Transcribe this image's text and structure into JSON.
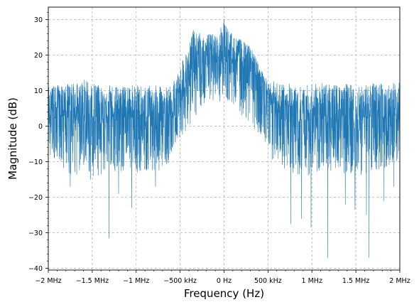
{
  "chart_data": {
    "type": "line",
    "title": "",
    "xlabel": "Frequency (Hz)",
    "ylabel": "Magnitude (dB)",
    "xlim": [
      -2000000,
      2000000
    ],
    "ylim": [
      -40.5,
      33.5
    ],
    "grid": true,
    "series_color": "#1f77b4",
    "xticks": [
      {
        "value": -2000000,
        "label": "−2 MHz"
      },
      {
        "value": -1500000,
        "label": "−1.5 MHz"
      },
      {
        "value": -1000000,
        "label": "−1 MHz"
      },
      {
        "value": -500000,
        "label": "−500 kHz"
      },
      {
        "value": 0,
        "label": "0 Hz"
      },
      {
        "value": 500000,
        "label": "500 kHz"
      },
      {
        "value": 1000000,
        "label": "1 MHz"
      },
      {
        "value": 1500000,
        "label": "1.5 MHz"
      },
      {
        "value": 2000000,
        "label": "2 MHz"
      }
    ],
    "yticks": [
      {
        "value": 30,
        "label": "30"
      },
      {
        "value": 20,
        "label": "20"
      },
      {
        "value": 10,
        "label": "10"
      },
      {
        "value": 0,
        "label": "0"
      },
      {
        "value": -10,
        "label": "−10"
      },
      {
        "value": -20,
        "label": "−20"
      },
      {
        "value": -30,
        "label": "−30"
      },
      {
        "value": -40,
        "label": "−40"
      }
    ],
    "series": [
      {
        "x": [
          -2000000,
          -1900000,
          -1800000,
          -1700000,
          -1600000,
          -1500000,
          -1400000,
          -1300000,
          -1200000,
          -1100000,
          -1000000,
          -900000,
          -800000,
          -700000,
          -650000,
          -600000,
          -550000,
          -500000,
          -450000,
          -400000,
          -350000,
          -300000,
          -250000,
          -200000,
          -150000,
          -100000,
          -50000,
          0,
          50000,
          100000,
          150000,
          200000,
          250000,
          300000,
          350000,
          400000,
          450000,
          500000,
          550000,
          600000,
          650000,
          700000,
          800000,
          900000,
          1000000,
          1100000,
          1200000,
          1300000,
          1400000,
          1500000,
          1600000,
          1700000,
          1800000,
          1900000,
          2000000
        ],
        "mean": [
          2.5,
          2.5,
          2.5,
          2.5,
          2.5,
          2.5,
          2.5,
          2.5,
          2.5,
          2.5,
          2.5,
          2.5,
          2.5,
          3,
          3.5,
          4.5,
          7,
          9.5,
          11.5,
          13.5,
          16,
          17.5,
          18,
          18.5,
          18.5,
          18.5,
          18.5,
          19,
          18.5,
          18.5,
          18.5,
          18,
          17.5,
          17,
          15.5,
          13.5,
          11,
          8,
          5.5,
          4.5,
          3.5,
          3,
          2.5,
          2.5,
          2.5,
          2.5,
          2.5,
          2.5,
          2.5,
          2.5,
          2.5,
          2.5,
          2.5,
          2.5,
          2.5
        ],
        "upper": [
          11,
          11.5,
          12,
          12,
          13.5,
          12,
          11.5,
          11.5,
          11,
          11.5,
          11.5,
          11,
          11.5,
          11,
          11,
          11.5,
          14,
          16,
          20,
          23,
          27,
          26,
          27,
          26,
          26,
          26,
          27,
          30,
          27,
          26,
          24.5,
          24.5,
          23,
          22.5,
          20,
          17,
          15,
          12,
          12.5,
          13,
          12,
          12,
          12,
          11.5,
          12,
          12,
          12,
          11.5,
          12,
          11.5,
          12,
          12,
          12,
          12,
          12.5
        ],
        "lower": [
          -8,
          -10,
          -13,
          -14,
          -13,
          -14,
          -14,
          -12,
          -14,
          -12,
          -13,
          -13,
          -13,
          -12,
          -11,
          -8,
          -5,
          -3,
          -2,
          0,
          1,
          4,
          6,
          7,
          7,
          7,
          6,
          7,
          7,
          6,
          5,
          3,
          2,
          0,
          -1,
          -3,
          -6,
          -8,
          -11,
          -12,
          -12,
          -12,
          -14,
          -14,
          -14,
          -13,
          -14,
          -14,
          -13,
          -14,
          -14,
          -13,
          -12,
          -11,
          -10
        ],
        "dips": [
          {
            "x": -1310000,
            "y": -31.5
          },
          {
            "x": -1750000,
            "y": -17
          },
          {
            "x": -1520000,
            "y": -15
          },
          {
            "x": -1050000,
            "y": -23
          },
          {
            "x": -1200000,
            "y": -19
          },
          {
            "x": -780000,
            "y": -17
          },
          {
            "x": 760000,
            "y": -27.5
          },
          {
            "x": 880000,
            "y": -26
          },
          {
            "x": 990000,
            "y": -28.5
          },
          {
            "x": 1180000,
            "y": -37
          },
          {
            "x": 1380000,
            "y": -22
          },
          {
            "x": 1490000,
            "y": -23.5
          },
          {
            "x": 1650000,
            "y": -37
          },
          {
            "x": 1620000,
            "y": -25
          },
          {
            "x": 1820000,
            "y": -21
          },
          {
            "x": 1930000,
            "y": -17
          }
        ]
      }
    ]
  }
}
